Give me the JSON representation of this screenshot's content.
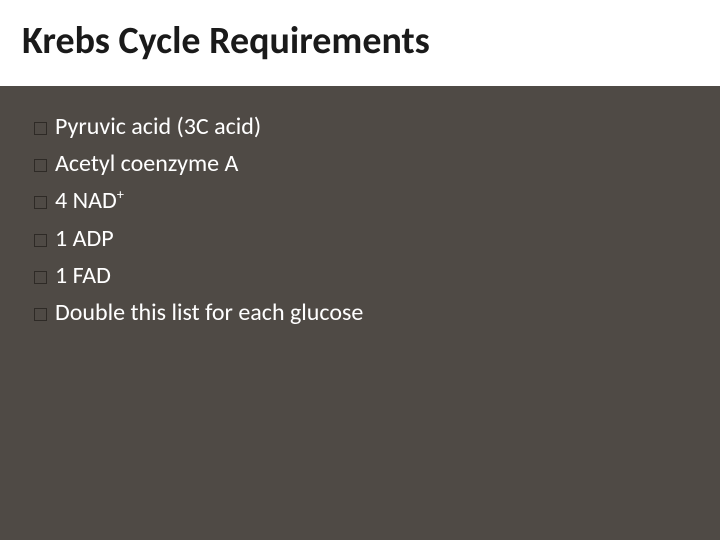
{
  "slide": {
    "title": "Krebs Cycle Requirements",
    "title_color": "#1a1a1a",
    "title_bg": "#ffffff",
    "title_fontsize": 38,
    "body_bg": "#4f4a45",
    "text_color": "#ffffff",
    "body_fontsize": 24,
    "bullet_border_color": "#2e2a26",
    "items": [
      {
        "text": "Pyruvic acid (3C acid)"
      },
      {
        "text": "Acetyl coenzyme A"
      },
      {
        "text": "4 NAD",
        "sup": "+"
      },
      {
        "text": "1 ADP"
      },
      {
        "text": "1 FAD"
      },
      {
        "text": "Double this list for each glucose"
      }
    ]
  }
}
